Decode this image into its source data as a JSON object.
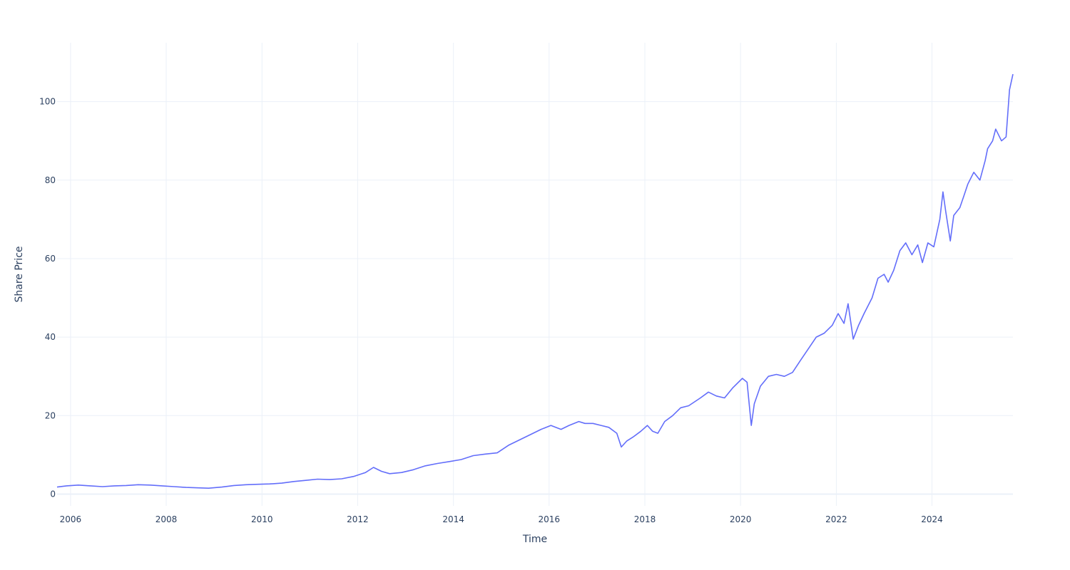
{
  "chart_data": {
    "type": "line",
    "title": "",
    "xlabel": "Time",
    "ylabel": "Share Price",
    "xlim": [
      "2005-09-20",
      "2025-09-10"
    ],
    "ylim": [
      -3,
      115
    ],
    "x_ticks": [
      "2006",
      "2008",
      "2010",
      "2012",
      "2014",
      "2016",
      "2018",
      "2020",
      "2022",
      "2024"
    ],
    "y_ticks": [
      0,
      20,
      40,
      60,
      80,
      100
    ],
    "grid": true,
    "legend": "none",
    "line_color": "#636efa",
    "series": [
      {
        "x": [
          "2005-09-20",
          "2005-12-01",
          "2006-03-01",
          "2006-06-01",
          "2006-09-01",
          "2006-12-01",
          "2007-03-01",
          "2007-06-01",
          "2007-09-01",
          "2007-12-01",
          "2008-03-01",
          "2008-06-01",
          "2008-09-01",
          "2008-11-20",
          "2009-03-01",
          "2009-06-01",
          "2009-09-01",
          "2009-12-01",
          "2010-03-01",
          "2010-06-01",
          "2010-09-01",
          "2010-12-01",
          "2011-03-01",
          "2011-06-01",
          "2011-09-01",
          "2011-12-01",
          "2012-03-01",
          "2012-05-01",
          "2012-07-01",
          "2012-09-01",
          "2012-12-01",
          "2013-03-01",
          "2013-06-01",
          "2013-09-01",
          "2013-12-01",
          "2014-03-01",
          "2014-06-01",
          "2014-09-01",
          "2014-12-01",
          "2015-03-01",
          "2015-06-01",
          "2015-09-01",
          "2015-11-01",
          "2016-01-15",
          "2016-04-01",
          "2016-06-01",
          "2016-08-15",
          "2016-10-01",
          "2016-12-01",
          "2017-02-01",
          "2017-04-01",
          "2017-06-01",
          "2017-07-05",
          "2017-08-15",
          "2017-10-01",
          "2017-12-01",
          "2018-01-20",
          "2018-03-01",
          "2018-04-10",
          "2018-06-01",
          "2018-08-01",
          "2018-10-01",
          "2018-12-01",
          "2019-03-01",
          "2019-05-01",
          "2019-07-01",
          "2019-09-01",
          "2019-11-01",
          "2020-01-15",
          "2020-02-20",
          "2020-03-23",
          "2020-04-15",
          "2020-06-01",
          "2020-08-01",
          "2020-10-01",
          "2020-12-01",
          "2021-02-01",
          "2021-04-01",
          "2021-06-01",
          "2021-08-01",
          "2021-10-01",
          "2021-12-01",
          "2022-01-15",
          "2022-03-01",
          "2022-04-01",
          "2022-05-10",
          "2022-06-20",
          "2022-08-01",
          "2022-10-01",
          "2022-11-15",
          "2023-01-01",
          "2023-02-01",
          "2023-03-15",
          "2023-05-01",
          "2023-06-15",
          "2023-08-01",
          "2023-09-15",
          "2023-10-20",
          "2023-12-01",
          "2024-01-15",
          "2024-03-01",
          "2024-03-25",
          "2024-04-15",
          "2024-05-20",
          "2024-06-15",
          "2024-08-01",
          "2024-09-01",
          "2024-10-01",
          "2024-11-15",
          "2025-01-01",
          "2025-02-10",
          "2025-03-01",
          "2025-04-08",
          "2025-05-01",
          "2025-06-15",
          "2025-07-20",
          "2025-08-15",
          "2025-09-10"
        ],
        "y": [
          1.8,
          2.1,
          2.3,
          2.1,
          1.9,
          2.1,
          2.2,
          2.4,
          2.3,
          2.1,
          1.9,
          1.7,
          1.6,
          1.5,
          1.8,
          2.2,
          2.4,
          2.5,
          2.6,
          2.8,
          3.2,
          3.5,
          3.8,
          3.7,
          3.9,
          4.5,
          5.5,
          6.8,
          5.8,
          5.2,
          5.5,
          6.2,
          7.2,
          7.8,
          8.3,
          8.8,
          9.8,
          10.2,
          10.5,
          12.5,
          14.0,
          15.5,
          16.5,
          17.5,
          16.5,
          17.5,
          18.5,
          18.0,
          18.0,
          17.5,
          17.0,
          15.5,
          12.0,
          13.5,
          14.5,
          16.0,
          17.5,
          16.0,
          15.5,
          18.5,
          20.0,
          22.0,
          22.5,
          24.5,
          26.0,
          25.0,
          24.5,
          27.0,
          29.5,
          28.5,
          17.5,
          23.0,
          27.5,
          30.0,
          30.5,
          30.0,
          31.0,
          34.0,
          37.0,
          40.0,
          41.0,
          43.0,
          46.0,
          43.5,
          48.5,
          39.5,
          43.0,
          46.0,
          50.0,
          55.0,
          56.0,
          54.0,
          57.0,
          62.0,
          64.0,
          61.0,
          63.5,
          59.0,
          64.0,
          63.0,
          70.0,
          77.0,
          72.0,
          64.5,
          71.0,
          73.0,
          76.0,
          79.0,
          82.0,
          80.0,
          85.0,
          88.0,
          90.0,
          93.0,
          90.0,
          91.0,
          103.0,
          107.0
        ]
      }
    ]
  }
}
